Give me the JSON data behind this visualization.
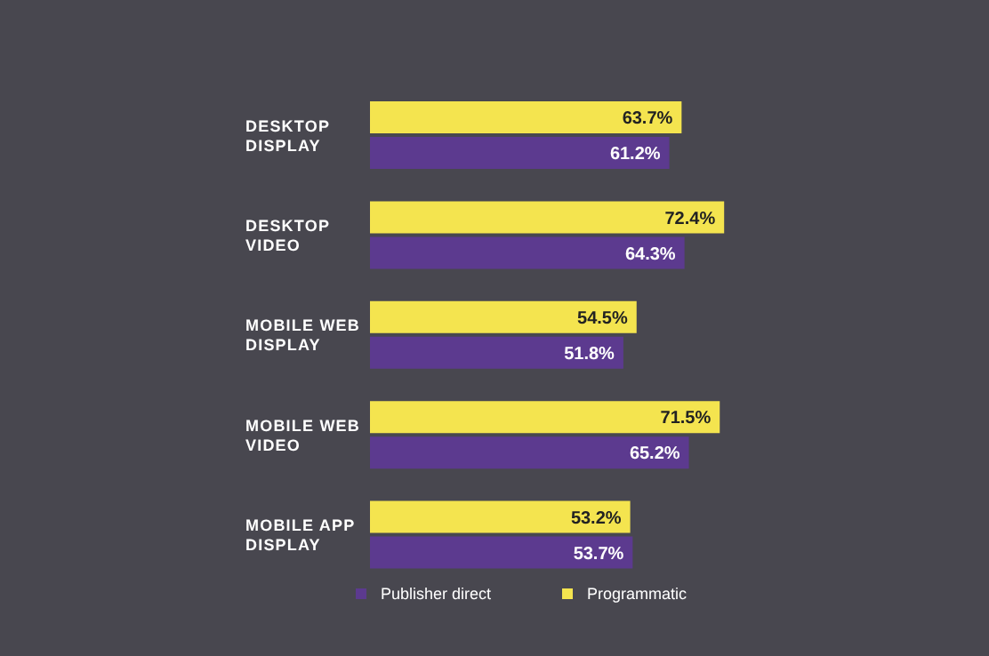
{
  "chart_data": {
    "type": "bar",
    "orientation": "horizontal",
    "categories": [
      "DESKTOP DISPLAY",
      "DESKTOP VIDEO",
      "MOBILE WEB DISPLAY",
      "MOBILE WEB VIDEO",
      "MOBILE APP DISPLAY"
    ],
    "series": [
      {
        "name": "Programmatic",
        "color": "#f4e44f",
        "values": [
          63.7,
          72.4,
          54.5,
          71.5,
          53.2
        ],
        "value_labels": [
          "63.7%",
          "72.4%",
          "54.5%",
          "71.5%",
          "53.2%"
        ]
      },
      {
        "name": "Publisher direct",
        "color": "#5c3a8f",
        "values": [
          61.2,
          64.3,
          51.8,
          65.2,
          53.7
        ],
        "value_labels": [
          "61.2%",
          "64.3%",
          "51.8%",
          "65.2%",
          "53.7%"
        ]
      }
    ],
    "legend": "bottom",
    "grid": false
  }
}
